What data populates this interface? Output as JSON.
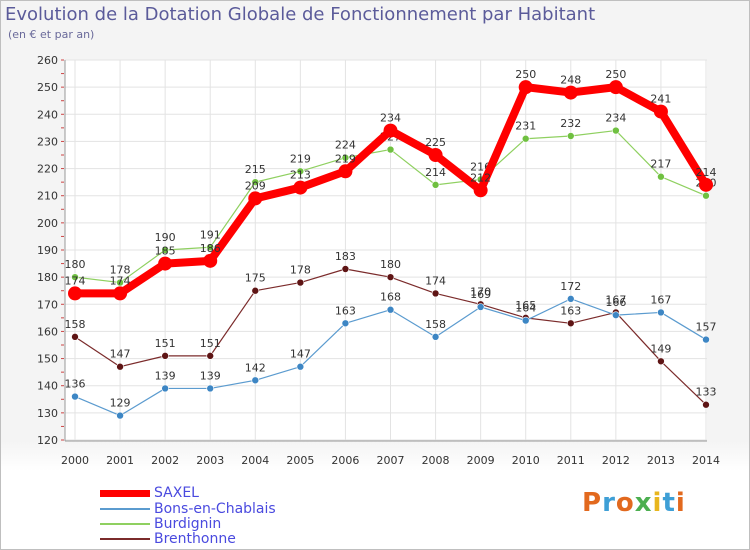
{
  "header": {
    "title": "Evolution de la Dotation Globale de Fonctionnement par Habitant",
    "subtitle": "(en € et par an)"
  },
  "logo": {
    "text": "Proxiti",
    "colors": [
      "#e2691e",
      "#3e9fd6",
      "#e2691e",
      "#4caf50",
      "#e8b61e",
      "#3e9fd6",
      "#e2691e"
    ]
  },
  "chart_data": {
    "type": "line",
    "title": "Evolution de la Dotation Globale de Fonctionnement par Habitant",
    "subtitle": "(en € et par an)",
    "xlabel": "",
    "ylabel": "",
    "ylim": [
      120,
      260
    ],
    "yticks": [
      120,
      130,
      140,
      150,
      160,
      170,
      180,
      190,
      200,
      210,
      220,
      230,
      240,
      250,
      260
    ],
    "x": [
      "2000",
      "2001",
      "2002",
      "2003",
      "2004",
      "2005",
      "2006",
      "2007",
      "2008",
      "2009",
      "2010",
      "2011",
      "2012",
      "2013",
      "2014"
    ],
    "grid": true,
    "legend_position": "bottom-left",
    "series": [
      {
        "name": "Brenthonne",
        "color": "#7b2b2b",
        "point_color": "#5e1414",
        "width": 1.2,
        "marker": 3.5,
        "values": [
          158,
          147,
          151,
          151,
          175,
          178,
          183,
          180,
          174,
          170,
          165,
          163,
          167,
          149,
          133
        ]
      },
      {
        "name": "Bons-en-Chablais",
        "color": "#5b9bcf",
        "point_color": "#3d86c4",
        "width": 1.2,
        "marker": 3.5,
        "values": [
          136,
          129,
          139,
          139,
          142,
          147,
          163,
          168,
          158,
          169,
          164,
          172,
          166,
          167,
          157
        ]
      },
      {
        "name": "Burdignin",
        "color": "#8fd060",
        "point_color": "#6fc040",
        "width": 1.2,
        "marker": 3.5,
        "values": [
          180,
          178,
          190,
          191,
          215,
          219,
          224,
          227,
          214,
          216,
          231,
          232,
          234,
          217,
          210
        ]
      },
      {
        "name": "SAXEL",
        "color": "#ff0000",
        "point_color": "#ff0000",
        "width": 8,
        "marker": 7,
        "values": [
          174,
          174,
          185,
          186,
          209,
          213,
          219,
          234,
          225,
          212,
          250,
          248,
          250,
          241,
          214
        ]
      }
    ],
    "legend": [
      "SAXEL",
      "Bons-en-Chablais",
      "Burdignin",
      "Brenthonne"
    ]
  }
}
